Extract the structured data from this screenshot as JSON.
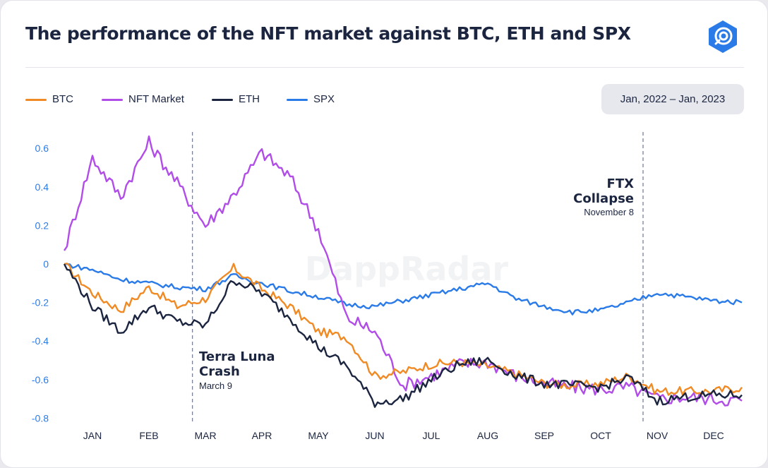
{
  "title": "The performance of the NFT market against BTC, ETH and SPX",
  "date_range": "Jan, 2022 – Jan, 2023",
  "watermark": "DappRadar",
  "legend": [
    {
      "label": "BTC",
      "color": "#f08a24"
    },
    {
      "label": "NFT Market",
      "color": "#b14ce8"
    },
    {
      "label": "ETH",
      "color": "#1b2540"
    },
    {
      "label": "SPX",
      "color": "#2a7be8"
    }
  ],
  "annotations": [
    {
      "title_lines": [
        "Terra Luna",
        "Crash"
      ],
      "subtitle": "March 9",
      "date_index": 2.27
    },
    {
      "title_lines": [
        "FTX",
        "Collapse"
      ],
      "subtitle": "November 8",
      "date_index": 10.25
    }
  ],
  "chart_data": {
    "type": "line",
    "x": [
      "2022-01-01",
      "2022-01-15",
      "2022-02-01",
      "2022-02-15",
      "2022-03-01",
      "2022-03-15",
      "2022-04-01",
      "2022-04-15",
      "2022-05-01",
      "2022-05-15",
      "2022-06-01",
      "2022-06-15",
      "2022-07-01",
      "2022-07-15",
      "2022-08-01",
      "2022-08-15",
      "2022-09-01",
      "2022-09-15",
      "2022-10-01",
      "2022-10-15",
      "2022-11-01",
      "2022-11-15",
      "2022-12-01",
      "2022-12-15",
      "2022-12-31"
    ],
    "x_tick_labels": [
      "JAN",
      "FEB",
      "MAR",
      "APR",
      "MAY",
      "JUN",
      "JUL",
      "AUG",
      "SEP",
      "OCT",
      "NOV",
      "DEC"
    ],
    "y_tick_labels": [
      "0.6",
      "0.4",
      "0.2",
      "0",
      "-0.2",
      "-0.4",
      "-0.6",
      "-0.8"
    ],
    "ylim": [
      -0.8,
      0.65
    ],
    "grid": false,
    "legend_position": "top-left",
    "series": [
      {
        "name": "BTC",
        "values": [
          0.0,
          -0.15,
          -0.24,
          -0.12,
          -0.22,
          -0.18,
          -0.02,
          -0.13,
          -0.22,
          -0.35,
          -0.38,
          -0.58,
          -0.56,
          -0.52,
          -0.51,
          -0.53,
          -0.57,
          -0.62,
          -0.63,
          -0.62,
          -0.58,
          -0.66,
          -0.66,
          -0.66,
          -0.64
        ]
      },
      {
        "name": "NFT Market",
        "values": [
          0.07,
          0.55,
          0.35,
          0.63,
          0.42,
          0.2,
          0.36,
          0.58,
          0.45,
          0.18,
          -0.28,
          -0.35,
          -0.63,
          -0.58,
          -0.52,
          -0.51,
          -0.58,
          -0.62,
          -0.64,
          -0.65,
          -0.64,
          -0.7,
          -0.69,
          -0.7,
          -0.71
        ]
      },
      {
        "name": "ETH",
        "values": [
          0.0,
          -0.22,
          -0.35,
          -0.22,
          -0.3,
          -0.32,
          -0.08,
          -0.15,
          -0.28,
          -0.43,
          -0.53,
          -0.72,
          -0.7,
          -0.6,
          -0.52,
          -0.5,
          -0.58,
          -0.62,
          -0.63,
          -0.64,
          -0.59,
          -0.71,
          -0.69,
          -0.68,
          -0.68
        ]
      },
      {
        "name": "SPX",
        "values": [
          0.0,
          -0.03,
          -0.08,
          -0.1,
          -0.12,
          -0.13,
          -0.06,
          -0.1,
          -0.14,
          -0.17,
          -0.21,
          -0.22,
          -0.19,
          -0.16,
          -0.13,
          -0.1,
          -0.18,
          -0.22,
          -0.25,
          -0.24,
          -0.2,
          -0.15,
          -0.17,
          -0.19,
          -0.2
        ]
      }
    ]
  }
}
